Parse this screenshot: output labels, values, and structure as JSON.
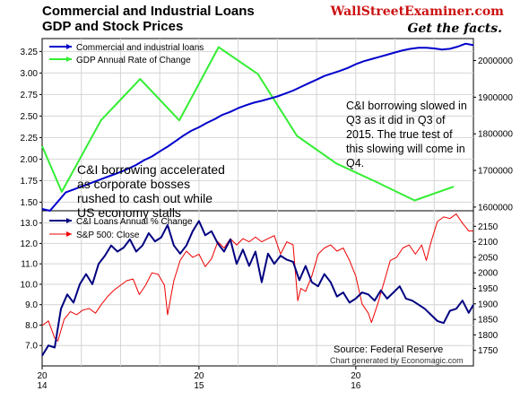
{
  "header": {
    "title_line1": "Commercial and Industrial Loans",
    "title_line2": "GDP and Stock Prices",
    "brand": "WallStreetExaminer.com",
    "tagline": "Get the facts."
  },
  "footer": {
    "source": "Source: Federal Reserve",
    "generated": "Chart generated by Economagic.com"
  },
  "colors": {
    "blue": "#0000cc",
    "navy": "#000080",
    "green": "#33ee33",
    "red": "#ee0000",
    "grid": "#d4d4d4",
    "brand_red": "#cc1111"
  },
  "chart_data": [
    {
      "type": "line",
      "panel": "top",
      "left_axis": {
        "ticks": [
          "1.50",
          "1.75",
          "2.00",
          "2.25",
          "2.50",
          "2.75",
          "3.00",
          "3.25"
        ],
        "range": [
          1.4,
          3.4
        ]
      },
      "right_axis": {
        "ticks": [
          "1600000",
          "1700000",
          "1800000",
          "1900000",
          "2000000"
        ],
        "range": [
          1590000,
          2060000
        ]
      },
      "legend": "top-left",
      "grid": true,
      "annotations": [
        {
          "text": "C&I borrowing accelerated",
          "line": 1
        },
        {
          "text": "as corporate bosses",
          "line": 2
        },
        {
          "text": "rushed to cash out while",
          "line": 3
        },
        {
          "text": "US economy stalls",
          "line": 4
        },
        {
          "text": "C&I borrowing slowed in",
          "line": 5
        },
        {
          "text": "Q3 as it did in Q3 of",
          "line": 6
        },
        {
          "text": "2015.  The true test of",
          "line": 7
        },
        {
          "text": "this slowing will come in",
          "line": 8
        },
        {
          "text": "Q4.",
          "line": 9
        }
      ],
      "series": [
        {
          "name": "Commercial and industrial loans",
          "axis": "right",
          "x": [
            2014.0,
            2014.05,
            2014.1,
            2014.15,
            2014.2,
            2014.25,
            2014.3,
            2014.35,
            2014.4,
            2014.45,
            2014.5,
            2014.55,
            2014.6,
            2014.65,
            2014.7,
            2014.75,
            2014.8,
            2014.85,
            2014.9,
            2014.95,
            2015.0,
            2015.05,
            2015.1,
            2015.15,
            2015.2,
            2015.25,
            2015.3,
            2015.35,
            2015.4,
            2015.45,
            2015.5,
            2015.55,
            2015.6,
            2015.65,
            2015.7,
            2015.75,
            2015.8,
            2015.85,
            2015.9,
            2015.95,
            2016.0,
            2016.05,
            2016.1,
            2016.15,
            2016.2,
            2016.25,
            2016.3,
            2016.35,
            2016.4,
            2016.45,
            2016.5,
            2016.55,
            2016.6,
            2016.65,
            2016.7,
            2016.75
          ],
          "values": [
            1595000,
            1590000,
            1615000,
            1640000,
            1648000,
            1656000,
            1664000,
            1672000,
            1680000,
            1688000,
            1696000,
            1705000,
            1715000,
            1728000,
            1738000,
            1752000,
            1765000,
            1780000,
            1795000,
            1808000,
            1818000,
            1830000,
            1840000,
            1852000,
            1860000,
            1870000,
            1878000,
            1885000,
            1890000,
            1896000,
            1902000,
            1910000,
            1918000,
            1928000,
            1938000,
            1948000,
            1958000,
            1965000,
            1972000,
            1980000,
            1990000,
            1998000,
            2004000,
            2010000,
            2016000,
            2022000,
            2028000,
            2032000,
            2035000,
            2035000,
            2033000,
            2030000,
            2032000,
            2038000,
            2046000,
            2042000
          ]
        },
        {
          "name": "GDP Annual Rate of Change",
          "axis": "left",
          "x": [
            2014.0,
            2014.125,
            2014.375,
            2014.625,
            2014.875,
            2015.125,
            2015.375,
            2015.625,
            2015.875,
            2016.125,
            2016.375,
            2016.625
          ],
          "values": [
            2.15,
            1.62,
            2.45,
            2.93,
            2.45,
            3.3,
            2.99,
            2.27,
            1.95,
            1.74,
            1.52,
            1.68
          ]
        }
      ]
    },
    {
      "type": "line",
      "panel": "bottom",
      "left_axis": {
        "ticks": [
          "7.0",
          "8.0",
          "9.0",
          "10.0",
          "11.0",
          "12.0",
          "13.0"
        ],
        "range": [
          6.0,
          13.6
        ]
      },
      "right_axis": {
        "ticks": [
          "1750",
          "1800",
          "1850",
          "1900",
          "1950",
          "2000",
          "2050",
          "2100",
          "2150"
        ],
        "range": [
          1700,
          2200
        ]
      },
      "x_axis": {
        "ticks": [
          "20\n14",
          "20\n15",
          "20\n16"
        ],
        "range": [
          2014.0,
          2016.75
        ]
      },
      "legend": "top-left",
      "grid": true,
      "series": [
        {
          "name": "C&I Loans Annual % Change",
          "axis": "left",
          "x": [
            2014.0,
            2014.04,
            2014.08,
            2014.12,
            2014.16,
            2014.2,
            2014.24,
            2014.28,
            2014.32,
            2014.36,
            2014.4,
            2014.44,
            2014.48,
            2014.52,
            2014.56,
            2014.6,
            2014.64,
            2014.68,
            2014.72,
            2014.76,
            2014.8,
            2014.84,
            2014.88,
            2014.92,
            2014.96,
            2015.0,
            2015.04,
            2015.08,
            2015.12,
            2015.16,
            2015.2,
            2015.24,
            2015.28,
            2015.32,
            2015.36,
            2015.4,
            2015.44,
            2015.48,
            2015.52,
            2015.56,
            2015.6,
            2015.64,
            2015.68,
            2015.72,
            2015.76,
            2015.8,
            2015.84,
            2015.88,
            2015.92,
            2015.96,
            2016.0,
            2016.04,
            2016.08,
            2016.12,
            2016.16,
            2016.2,
            2016.24,
            2016.28,
            2016.32,
            2016.36,
            2016.4,
            2016.44,
            2016.48,
            2016.52,
            2016.56,
            2016.6,
            2016.64,
            2016.68,
            2016.72,
            2016.75
          ],
          "values": [
            6.5,
            7.0,
            6.9,
            8.8,
            9.5,
            9.1,
            10.0,
            10.5,
            10.0,
            11.0,
            11.4,
            11.9,
            11.6,
            11.8,
            12.2,
            11.6,
            11.9,
            12.5,
            12.1,
            12.3,
            12.9,
            11.9,
            11.5,
            11.9,
            12.6,
            13.1,
            12.4,
            12.6,
            12.0,
            11.6,
            12.2,
            11.0,
            11.7,
            10.9,
            11.6,
            10.1,
            11.5,
            11.0,
            11.4,
            11.2,
            11.1,
            10.2,
            10.9,
            10.1,
            9.9,
            10.5,
            10.1,
            9.4,
            9.6,
            9.1,
            9.3,
            9.6,
            9.5,
            9.2,
            9.7,
            9.3,
            9.6,
            9.9,
            9.3,
            9.2,
            9.0,
            8.8,
            8.5,
            8.2,
            8.1,
            8.7,
            8.8,
            9.2,
            8.6,
            9.0
          ]
        },
        {
          "name": "S&P 500: Close",
          "axis": "right",
          "x": [
            2014.0,
            2014.04,
            2014.08,
            2014.1,
            2014.14,
            2014.18,
            2014.22,
            2014.26,
            2014.3,
            2014.34,
            2014.38,
            2014.42,
            2014.46,
            2014.5,
            2014.54,
            2014.58,
            2014.62,
            2014.66,
            2014.7,
            2014.74,
            2014.78,
            2014.8,
            2014.84,
            2014.88,
            2014.92,
            2014.96,
            2015.0,
            2015.04,
            2015.08,
            2015.12,
            2015.16,
            2015.2,
            2015.24,
            2015.28,
            2015.32,
            2015.36,
            2015.4,
            2015.44,
            2015.48,
            2015.52,
            2015.56,
            2015.6,
            2015.63,
            2015.65,
            2015.68,
            2015.72,
            2015.76,
            2015.8,
            2015.84,
            2015.88,
            2015.92,
            2015.96,
            2016.0,
            2016.04,
            2016.08,
            2016.1,
            2016.14,
            2016.18,
            2016.22,
            2016.26,
            2016.3,
            2016.34,
            2016.38,
            2016.42,
            2016.45,
            2016.48,
            2016.52,
            2016.56,
            2016.6,
            2016.64,
            2016.68,
            2016.72,
            2016.75
          ],
          "values": [
            1830,
            1845,
            1790,
            1780,
            1850,
            1875,
            1865,
            1880,
            1885,
            1870,
            1900,
            1925,
            1945,
            1960,
            1975,
            1980,
            1930,
            1960,
            2000,
            1995,
            1960,
            1865,
            1975,
            2040,
            2070,
            2050,
            2060,
            2020,
            2045,
            2100,
            2080,
            2110,
            2090,
            2110,
            2100,
            2115,
            2100,
            2110,
            2120,
            2060,
            2100,
            2090,
            1910,
            1950,
            1940,
            1990,
            2060,
            2080,
            2090,
            2070,
            2080,
            2040,
            1990,
            1900,
            1870,
            1840,
            1900,
            1970,
            2040,
            2050,
            2080,
            2090,
            2060,
            2090,
            2040,
            2100,
            2165,
            2180,
            2175,
            2190,
            2160,
            2135,
            2135
          ]
        }
      ]
    }
  ]
}
